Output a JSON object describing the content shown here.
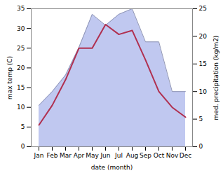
{
  "chart_data": {
    "type": "line",
    "xlabel": "date (month)",
    "ylabel": "max temp (C)",
    "y2label": "med. precipitation (kg/m2)",
    "categories": [
      "Jan",
      "Feb",
      "Mar",
      "Apr",
      "May",
      "Jun",
      "Jul",
      "Aug",
      "Sep",
      "Oct",
      "Nov",
      "Dec"
    ],
    "series": [
      {
        "type": "area",
        "axis": "y2",
        "color": "#c0c8f0",
        "values": [
          7.5,
          10.0,
          13.0,
          18.0,
          24.0,
          22.0,
          24.0,
          25.0,
          19.0,
          19.0,
          10.0,
          10.0
        ]
      },
      {
        "type": "line",
        "color": "#b03050",
        "values": [
          5.5,
          10.5,
          17.0,
          25.0,
          25.0,
          31.0,
          28.5,
          29.5,
          22.0,
          14.0,
          10.0,
          7.5
        ]
      }
    ],
    "ylim": [
      0,
      35
    ],
    "yticks": [
      0,
      5,
      10,
      15,
      20,
      25,
      30,
      35
    ],
    "y2lim": [
      0,
      25
    ],
    "y2ticks": [
      0,
      5,
      10,
      15,
      20,
      25
    ],
    "grid": false
  }
}
